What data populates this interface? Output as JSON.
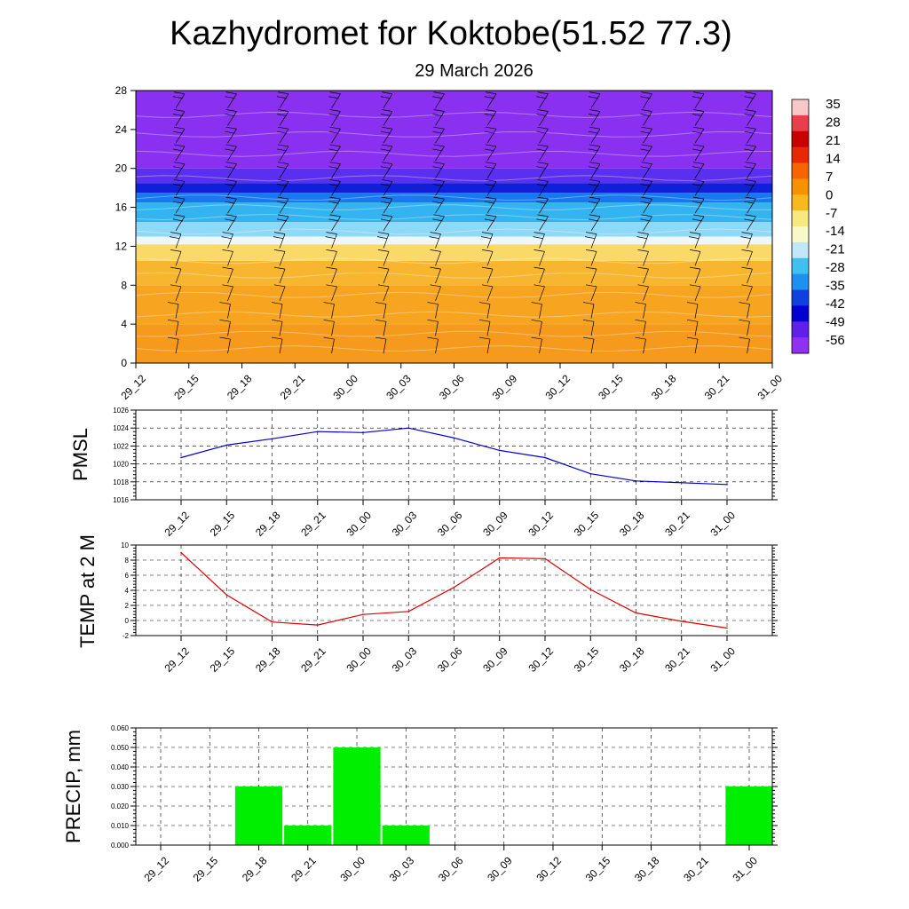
{
  "title": "Kazhydromet for Koktobe(51.52 77.3)",
  "subtitle": "29 March 2026",
  "time_labels": [
    "29_12",
    "29_15",
    "29_18",
    "29_21",
    "30_00",
    "30_03",
    "30_06",
    "30_09",
    "30_12",
    "30_15",
    "30_18",
    "30_21",
    "31_00"
  ],
  "chart_data": [
    {
      "type": "heatmap",
      "name": "cross-section",
      "x": [
        "29_12",
        "29_15",
        "29_18",
        "29_21",
        "30_00",
        "30_03",
        "30_06",
        "30_09",
        "30_12",
        "30_15",
        "30_18",
        "30_21",
        "31_00"
      ],
      "ylim": [
        0,
        28
      ],
      "yticks": [
        0,
        4,
        8,
        12,
        16,
        20,
        24,
        28
      ],
      "colorbar": {
        "labels": [
          35,
          28,
          21,
          14,
          7,
          0,
          -7,
          -14,
          -21,
          -28,
          -35,
          -42,
          -49,
          -56
        ],
        "colors": [
          "#f8c8c8",
          "#e8404a",
          "#c80000",
          "#e82800",
          "#f86400",
          "#f89000",
          "#f8b820",
          "#f8e880",
          "#f8f8c8",
          "#c0e8f8",
          "#40c0f0",
          "#2090f0",
          "#1040e0",
          "#0000d0",
          "#6020e8",
          "#9030f0"
        ]
      },
      "bands": [
        {
          "from": 0,
          "to": 4,
          "color": "#f59a1c"
        },
        {
          "from": 4,
          "to": 8,
          "color": "#f7a521"
        },
        {
          "from": 8,
          "to": 10.5,
          "color": "#f8b630"
        },
        {
          "from": 10.5,
          "to": 12.2,
          "color": "#fbd86a"
        },
        {
          "from": 12.2,
          "to": 13,
          "color": "#eef8f8"
        },
        {
          "from": 13,
          "to": 14.5,
          "color": "#8fd8f6"
        },
        {
          "from": 14.5,
          "to": 16.5,
          "color": "#33b4f0"
        },
        {
          "from": 16.5,
          "to": 17.5,
          "color": "#1878f0"
        },
        {
          "from": 17.5,
          "to": 18.5,
          "color": "#1020d8"
        },
        {
          "from": 18.5,
          "to": 20,
          "color": "#5a30f0"
        },
        {
          "from": 20,
          "to": 28,
          "color": "#8a30f0"
        }
      ]
    },
    {
      "type": "line",
      "ylabel": "PMSL",
      "color": "#0000cc",
      "categories": [
        "29_12",
        "29_15",
        "29_18",
        "29_21",
        "30_00",
        "30_03",
        "30_06",
        "30_09",
        "30_12",
        "30_15",
        "30_18",
        "30_21",
        "31_00"
      ],
      "values": [
        1020.7,
        1022.1,
        1022.8,
        1023.6,
        1023.5,
        1024.0,
        1022.9,
        1021.5,
        1020.7,
        1018.9,
        1018.1,
        1017.9,
        1017.7
      ],
      "ylim": [
        1016,
        1026
      ],
      "yticks": [
        1016,
        1018,
        1020,
        1022,
        1024,
        1026
      ]
    },
    {
      "type": "line",
      "ylabel": "TEMP at 2 M",
      "color": "#dd0000",
      "categories": [
        "29_12",
        "29_15",
        "29_18",
        "29_21",
        "30_00",
        "30_03",
        "30_06",
        "30_09",
        "30_12",
        "30_15",
        "30_18",
        "30_21",
        "31_00"
      ],
      "values": [
        9.0,
        3.4,
        -0.2,
        -0.6,
        0.8,
        1.2,
        4.4,
        8.3,
        8.2,
        4.1,
        1.0,
        -0.1,
        -1.0
      ],
      "ylim": [
        -2,
        10
      ],
      "yticks": [
        -2,
        0,
        2,
        4,
        6,
        8,
        10
      ]
    },
    {
      "type": "bar",
      "ylabel": "PRECIP, mm",
      "color": "#00ee00",
      "categories": [
        "29_12",
        "29_15",
        "29_18",
        "29_21",
        "30_00",
        "30_03",
        "30_06",
        "30_09",
        "30_12",
        "30_15",
        "30_18",
        "30_21",
        "31_00"
      ],
      "values": [
        0,
        0,
        0.03,
        0.01,
        0.05,
        0.01,
        0,
        0,
        0,
        0,
        0,
        0,
        0.03
      ],
      "ylim": [
        0,
        0.06
      ],
      "yticks": [
        "0.000",
        "0.010",
        "0.020",
        "0.030",
        "0.040",
        "0.050",
        "0.060"
      ]
    }
  ]
}
